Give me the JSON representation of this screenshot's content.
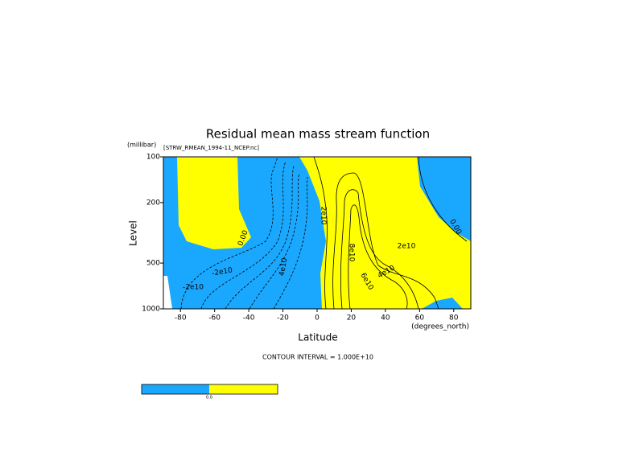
{
  "chart_data": {
    "type": "contour",
    "title": "Residual mean mass stream function",
    "subtitle": "[STRW_RMEAN_1994-11_NCEP.nc]",
    "xlabel": "Latitude",
    "ylabel": "Level",
    "xunits": "(degrees_north)",
    "yunits": "(millibar)",
    "note": "CONTOUR INTERVAL = 1.000E+10",
    "xlim": [
      -90,
      90
    ],
    "xticks": [
      -80,
      -60,
      -40,
      -20,
      0,
      20,
      40,
      60,
      80
    ],
    "ylim": [
      1000,
      100
    ],
    "ylog": true,
    "yticks": [
      100,
      200,
      500,
      1000
    ],
    "colors": [
      "#1aa8ff",
      "#ffff00"
    ],
    "colorbar_labels": [
      "0.0"
    ],
    "annotations": [
      "0.00",
      "-2e10",
      "2e10",
      "4e10",
      "6e10",
      "8e10",
      "0.00",
      "2e10",
      "-2e10",
      "4e10"
    ]
  }
}
